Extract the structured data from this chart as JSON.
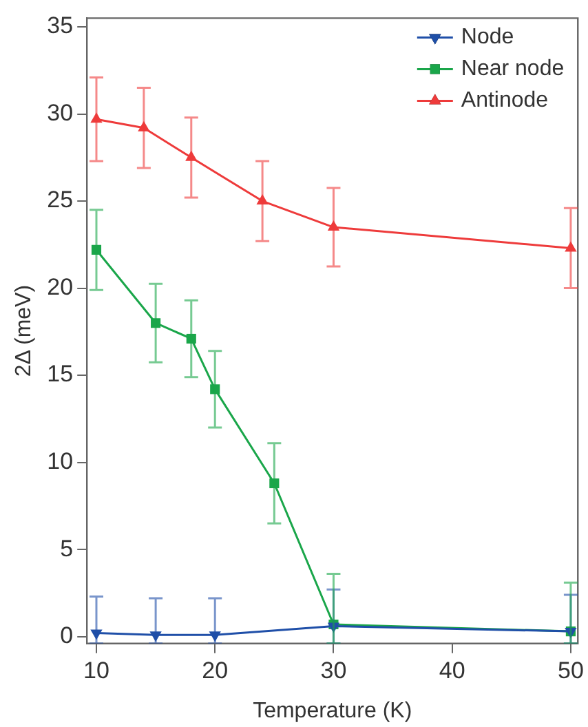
{
  "chart_data": {
    "type": "line",
    "xlabel": "Temperature (K)",
    "ylabel": "2Δ (meV)",
    "xlim": [
      9.2,
      50.6
    ],
    "ylim": [
      -0.4,
      35.5
    ],
    "xticks": [
      10,
      20,
      30,
      40,
      50
    ],
    "yticks": [
      0,
      5,
      10,
      15,
      20,
      25,
      30,
      35
    ],
    "grid": false,
    "legend": "top right",
    "line_style": "solid",
    "series": [
      {
        "name": "Node",
        "color": "#1f4fa8",
        "marker": "triangle-down",
        "x": [
          10,
          15,
          20,
          30,
          50
        ],
        "values": [
          0.2,
          0.1,
          0.1,
          0.6,
          0.3
        ],
        "errors": [
          [
            -0.4,
            2.3
          ],
          [
            -0.4,
            2.2
          ],
          [
            -0.4,
            2.2
          ],
          [
            -0.4,
            2.7
          ],
          [
            -0.4,
            2.4
          ]
        ]
      },
      {
        "name": "Near node",
        "color": "#1aa64a",
        "marker": "square",
        "x": [
          10,
          15,
          18,
          20,
          25,
          30,
          50
        ],
        "values": [
          22.2,
          18.0,
          17.1,
          14.2,
          8.8,
          0.7,
          0.3
        ],
        "errors": [
          2.3,
          2.25,
          2.2,
          2.2,
          2.3,
          [
            -0.4,
            3.6
          ],
          [
            -0.4,
            3.1
          ]
        ]
      },
      {
        "name": "Antinode",
        "color": "#ee3b3b",
        "marker": "triangle",
        "x": [
          10,
          14,
          18,
          24,
          30,
          50
        ],
        "values": [
          29.7,
          29.2,
          27.5,
          25.0,
          23.5,
          22.3
        ],
        "errors": [
          2.4,
          2.3,
          2.3,
          2.3,
          2.25,
          2.3
        ]
      }
    ]
  }
}
